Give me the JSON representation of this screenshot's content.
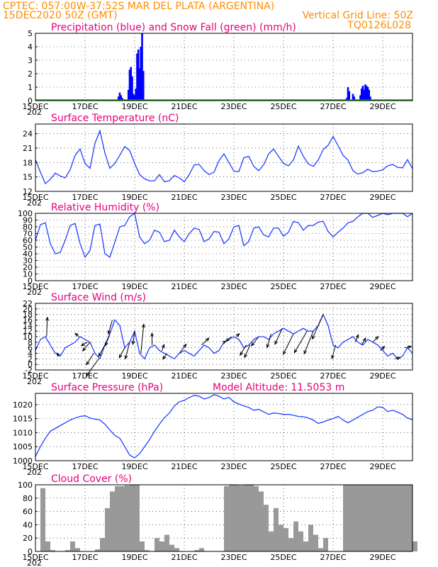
{
  "header": {
    "line1_left": "CPTEC:  057:00W-37:52S  MAR DEL PLATA (ARGENTINA)",
    "line2_left": "15DEC2020 50Z (GMT)",
    "line2_right": "Vertical Grid Line: 50Z",
    "line3_right": "TQ0126L028"
  },
  "colors": {
    "header": "#ff8c00",
    "title": "#e6007e",
    "line": "#2040ff",
    "precip": "#0000ff",
    "snow": "#00a000",
    "cloud": "#999999"
  },
  "x_axis": {
    "tick_labels": [
      "15DEC",
      "17DEC",
      "19DEC",
      "21DEC",
      "23DEC",
      "25DEC",
      "27DEC",
      "29DEC"
    ],
    "tick_days": [
      0,
      2,
      4,
      6,
      8,
      10,
      12,
      14
    ],
    "cut_label": "202",
    "range_days": [
      0,
      15.2
    ]
  },
  "chart_data": [
    {
      "type": "bar",
      "title": "Precipitation (blue) and Snow Fall (green) (mm/h)",
      "ylim": [
        0,
        5
      ],
      "yticks": [
        0,
        1,
        2,
        3,
        4,
        5
      ],
      "series": [
        {
          "name": "Precipitation",
          "color": "#0000ff",
          "x": [
            3.35,
            3.4,
            3.45,
            3.5,
            3.75,
            3.8,
            3.85,
            3.9,
            3.95,
            4.0,
            4.05,
            4.1,
            4.15,
            4.2,
            4.25,
            4.3,
            4.35,
            12.55,
            12.6,
            12.65,
            12.8,
            12.85,
            13.1,
            13.15,
            13.2,
            13.25,
            13.3,
            13.35,
            13.4,
            13.45,
            13.5
          ],
          "values": [
            0.3,
            0.6,
            0.4,
            0.2,
            0.8,
            2.3,
            2.5,
            1.8,
            0.5,
            0.4,
            0.9,
            3.5,
            3.8,
            2.4,
            4.0,
            5.0,
            2.2,
            0.2,
            1.0,
            0.7,
            0.5,
            0.3,
            0.4,
            0.9,
            1.1,
            0.8,
            1.2,
            1.1,
            1.0,
            0.8,
            0.3
          ]
        },
        {
          "name": "Snow Fall",
          "color": "#00a000",
          "x": [],
          "values": []
        }
      ]
    },
    {
      "type": "line",
      "title": "Surface Temperature (nC)",
      "ylim": [
        12,
        26
      ],
      "yticks": [
        12,
        15,
        18,
        21,
        24
      ],
      "x": [
        0,
        0.2,
        0.4,
        0.6,
        0.8,
        1,
        1.2,
        1.4,
        1.6,
        1.8,
        2,
        2.2,
        2.4,
        2.6,
        2.8,
        3,
        3.2,
        3.4,
        3.6,
        3.8,
        4,
        4.2,
        4.4,
        4.6,
        4.8,
        5,
        5.2,
        5.4,
        5.6,
        5.8,
        6,
        6.2,
        6.4,
        6.6,
        6.8,
        7,
        7.2,
        7.4,
        7.6,
        7.8,
        8,
        8.2,
        8.4,
        8.6,
        8.8,
        9,
        9.2,
        9.4,
        9.6,
        9.8,
        10,
        10.2,
        10.4,
        10.6,
        10.8,
        11,
        11.2,
        11.4,
        11.6,
        11.8,
        12,
        12.2,
        12.4,
        12.6,
        12.8,
        13,
        13.2,
        13.4,
        13.6,
        13.8,
        14,
        14.2,
        14.4,
        14.6,
        14.8,
        15,
        15.2
      ],
      "values": [
        18.6,
        16.0,
        13.6,
        14.5,
        15.8,
        15.2,
        14.8,
        16.5,
        19.5,
        20.8,
        17.8,
        16.8,
        22.0,
        24.6,
        20.0,
        16.8,
        17.8,
        19.5,
        21.3,
        20.5,
        17.8,
        15.5,
        14.6,
        14.2,
        14.2,
        15.5,
        14.0,
        14.2,
        15.3,
        14.8,
        14.0,
        15.5,
        17.5,
        17.6,
        16.3,
        15.5,
        16.0,
        18.4,
        19.8,
        18.0,
        16.2,
        16.1,
        19.0,
        19.3,
        17.2,
        16.3,
        17.5,
        19.8,
        20.8,
        19.3,
        17.8,
        17.3,
        18.5,
        21.4,
        19.3,
        17.7,
        17.2,
        18.5,
        20.7,
        21.6,
        23.4,
        21.5,
        19.5,
        18.5,
        16.3,
        15.6,
        15.9,
        16.6,
        16.1,
        16.2,
        16.5,
        17.3,
        17.6,
        17.0,
        16.9,
        18.6,
        16.7
      ]
    },
    {
      "type": "line",
      "title": "Relative Humidity (%)",
      "ylim": [
        0,
        100
      ],
      "yticks": [
        0,
        10,
        20,
        30,
        40,
        50,
        60,
        70,
        80,
        90,
        100
      ],
      "x": [
        0,
        0.2,
        0.4,
        0.6,
        0.8,
        1,
        1.2,
        1.4,
        1.6,
        1.8,
        2,
        2.2,
        2.4,
        2.6,
        2.8,
        3,
        3.2,
        3.4,
        3.6,
        3.8,
        4,
        4.2,
        4.4,
        4.6,
        4.8,
        5,
        5.2,
        5.4,
        5.6,
        5.8,
        6,
        6.2,
        6.4,
        6.6,
        6.8,
        7,
        7.2,
        7.4,
        7.6,
        7.8,
        8,
        8.2,
        8.4,
        8.6,
        8.8,
        9,
        9.2,
        9.4,
        9.6,
        9.8,
        10,
        10.2,
        10.4,
        10.6,
        10.8,
        11,
        11.2,
        11.4,
        11.6,
        11.8,
        12,
        12.2,
        12.4,
        12.6,
        12.8,
        13,
        13.2,
        13.4,
        13.6,
        13.8,
        14,
        14.2,
        14.4,
        14.6,
        14.8,
        15,
        15.2
      ],
      "values": [
        60,
        83,
        86,
        55,
        40,
        42,
        60,
        82,
        85,
        55,
        35,
        45,
        82,
        84,
        40,
        35,
        57,
        80,
        82,
        95,
        100,
        65,
        55,
        60,
        75,
        72,
        58,
        60,
        75,
        65,
        58,
        70,
        78,
        76,
        58,
        62,
        73,
        72,
        55,
        62,
        80,
        82,
        52,
        58,
        78,
        80,
        68,
        65,
        78,
        78,
        66,
        72,
        88,
        86,
        75,
        82,
        82,
        87,
        88,
        73,
        65,
        72,
        78,
        86,
        88,
        95,
        100,
        100,
        94,
        97,
        100,
        98,
        100,
        100,
        100,
        95,
        100
      ]
    },
    {
      "type": "line",
      "title": "Surface Wind (m/s)",
      "ylim": [
        -2,
        22
      ],
      "yticks": [
        -2,
        0,
        2,
        4,
        6,
        8,
        10,
        12,
        14,
        16,
        18,
        20,
        22
      ],
      "x": [
        0,
        0.2,
        0.4,
        0.6,
        0.8,
        1,
        1.2,
        1.4,
        1.6,
        1.8,
        2,
        2.2,
        2.4,
        2.6,
        2.8,
        3,
        3.2,
        3.4,
        3.6,
        3.8,
        4,
        4.2,
        4.4,
        4.6,
        4.8,
        5,
        5.2,
        5.4,
        5.6,
        5.8,
        6,
        6.2,
        6.4,
        6.6,
        6.8,
        7,
        7.2,
        7.4,
        7.6,
        7.8,
        8,
        8.2,
        8.4,
        8.6,
        8.8,
        9,
        9.2,
        9.4,
        9.6,
        9.8,
        10,
        10.2,
        10.4,
        10.6,
        10.8,
        11,
        11.2,
        11.4,
        11.6,
        11.8,
        12,
        12.2,
        12.4,
        12.6,
        12.8,
        13,
        13.2,
        13.4,
        13.6,
        13.8,
        14,
        14.2,
        14.4,
        14.6,
        14.8,
        15,
        15.2
      ],
      "values": [
        5,
        9,
        10,
        7,
        4,
        3,
        6,
        7,
        8,
        10,
        9,
        8,
        4,
        2,
        7,
        11,
        16,
        14,
        6,
        8,
        12,
        4,
        2,
        6,
        7,
        5,
        4,
        3,
        2,
        4,
        5,
        4,
        3,
        5,
        7,
        6,
        4,
        5,
        8,
        9,
        10,
        9,
        6,
        7,
        9,
        10,
        10,
        9,
        11,
        12,
        13,
        12,
        11,
        12,
        13,
        12,
        12,
        14,
        18,
        14,
        7,
        6,
        8,
        9,
        10,
        8,
        7,
        9,
        8,
        7,
        5,
        3,
        4,
        2,
        3,
        6,
        4
      ],
      "arrows": [
        {
          "x": 0.45,
          "u": 0.2,
          "v": 8.5
        },
        {
          "x": 0.95,
          "u": -0.5,
          "v": 1.3
        },
        {
          "x": 1.75,
          "u": -1.0,
          "v": 1.5
        },
        {
          "x": 2.1,
          "u": -1.7,
          "v": -1.5
        },
        {
          "x": 2.2,
          "u": -2.0,
          "v": -3.8
        },
        {
          "x": 2.35,
          "u": -2.0,
          "v": -5.0
        },
        {
          "x": 2.55,
          "u": -3.4,
          "v": -7.5
        },
        {
          "x": 2.8,
          "u": -1.7,
          "v": -5.0
        },
        {
          "x": 3.0,
          "u": -1.2,
          "v": -5.2
        },
        {
          "x": 3.1,
          "u": -1.1,
          "v": -6.1
        },
        {
          "x": 3.6,
          "u": -1.5,
          "v": -4.4
        },
        {
          "x": 3.8,
          "u": -1.2,
          "v": -7.3
        },
        {
          "x": 4.0,
          "u": -0.5,
          "v": -5.8
        },
        {
          "x": 4.25,
          "u": 0.8,
          "v": 12.8
        },
        {
          "x": 4.7,
          "u": 0,
          "v": 5.2
        },
        {
          "x": 5.1,
          "u": 0.6,
          "v": 2.6
        },
        {
          "x": 5.3,
          "u": -1.1,
          "v": -2.6
        },
        {
          "x": 5.8,
          "u": 1.9,
          "v": 4.0
        },
        {
          "x": 6.7,
          "u": 2.0,
          "v": 3.0
        },
        {
          "x": 7.6,
          "u": 0.5,
          "v": 0.4
        },
        {
          "x": 7.9,
          "u": -1.5,
          "v": -2.0
        },
        {
          "x": 8.1,
          "u": 0.8,
          "v": 1.3
        },
        {
          "x": 8.5,
          "u": -1.7,
          "v": -4.5
        },
        {
          "x": 8.65,
          "u": -1.5,
          "v": -5.5
        },
        {
          "x": 9.0,
          "u": -2.0,
          "v": -4.0
        },
        {
          "x": 9.5,
          "u": -1.1,
          "v": -6.0
        },
        {
          "x": 9.95,
          "u": -2.0,
          "v": -7.0
        },
        {
          "x": 10.4,
          "u": -2.8,
          "v": -9.0
        },
        {
          "x": 10.95,
          "u": -3.5,
          "v": -9.5
        },
        {
          "x": 11.2,
          "u": -2.5,
          "v": -10.0
        },
        {
          "x": 11.6,
          "u": -3.0,
          "v": -10.8
        },
        {
          "x": 12.1,
          "u": -1.0,
          "v": -6.0
        },
        {
          "x": 12.9,
          "u": 0.8,
          "v": 3.3
        },
        {
          "x": 13.15,
          "u": 1.1,
          "v": 3.0
        },
        {
          "x": 13.6,
          "u": 1.5,
          "v": 2.5
        },
        {
          "x": 13.9,
          "u": 1.2,
          "v": 1.8
        },
        {
          "x": 14.5,
          "u": 1.4,
          "v": 0.6
        },
        {
          "x": 14.9,
          "u": 1.7,
          "v": 0.6
        }
      ]
    },
    {
      "type": "line",
      "title": "Surface Pressure (hPa)",
      "annotation": "Model Altitude: 11.5053 m",
      "ylim": [
        1000,
        1024
      ],
      "yticks": [
        1000,
        1005,
        1010,
        1015,
        1020
      ],
      "x": [
        0,
        0.2,
        0.4,
        0.6,
        0.8,
        1,
        1.2,
        1.4,
        1.6,
        1.8,
        2,
        2.2,
        2.4,
        2.6,
        2.8,
        3,
        3.2,
        3.4,
        3.6,
        3.8,
        4,
        4.2,
        4.4,
        4.6,
        4.8,
        5,
        5.2,
        5.4,
        5.6,
        5.8,
        6,
        6.2,
        6.4,
        6.6,
        6.8,
        7,
        7.2,
        7.4,
        7.6,
        7.8,
        8,
        8.2,
        8.4,
        8.6,
        8.8,
        9,
        9.2,
        9.4,
        9.6,
        9.8,
        10,
        10.2,
        10.4,
        10.6,
        10.8,
        11,
        11.2,
        11.4,
        11.6,
        11.8,
        12,
        12.2,
        12.4,
        12.6,
        12.8,
        13,
        13.2,
        13.4,
        13.6,
        13.8,
        14,
        14.2,
        14.4,
        14.6,
        14.8,
        15,
        15.2
      ],
      "values": [
        1001.5,
        1005,
        1008,
        1010.5,
        1011.5,
        1012.5,
        1013.5,
        1014.5,
        1015.2,
        1015.8,
        1016,
        1015.2,
        1014.8,
        1014.5,
        1013,
        1011,
        1009,
        1008,
        1005,
        1002,
        1001,
        1002.5,
        1005,
        1007.5,
        1010.5,
        1013,
        1015.3,
        1017,
        1019.5,
        1021,
        1021.5,
        1022.5,
        1023.3,
        1023,
        1022,
        1022.5,
        1023.5,
        1023,
        1022,
        1022.5,
        1021,
        1020.2,
        1019.5,
        1019,
        1018,
        1018.3,
        1017.4,
        1016.5,
        1017,
        1016.8,
        1016.5,
        1016.5,
        1016.2,
        1015.8,
        1015.7,
        1015.2,
        1014.5,
        1013.3,
        1013.8,
        1014.5,
        1015,
        1015.8,
        1014.5,
        1013.5,
        1014.5,
        1015.5,
        1016.5,
        1017.5,
        1018,
        1019.2,
        1019,
        1017.5,
        1018,
        1017.3,
        1016.5,
        1015.2,
        1014.6
      ]
    },
    {
      "type": "area",
      "title": "Cloud Cover (%)",
      "ylim": [
        0,
        100
      ],
      "yticks": [
        0,
        20,
        40,
        60,
        80,
        100
      ],
      "x": [
        0,
        0.2,
        0.4,
        0.6,
        0.8,
        1,
        1.2,
        1.4,
        1.6,
        1.8,
        2,
        2.2,
        2.4,
        2.6,
        2.8,
        3,
        3.2,
        3.4,
        3.6,
        3.8,
        4,
        4.2,
        4.4,
        4.6,
        4.8,
        5,
        5.2,
        5.4,
        5.6,
        5.8,
        6,
        6.2,
        6.4,
        6.6,
        6.8,
        7,
        7.2,
        7.4,
        7.6,
        7.8,
        8,
        8.2,
        8.4,
        8.6,
        8.8,
        9,
        9.2,
        9.4,
        9.6,
        9.8,
        10,
        10.2,
        10.4,
        10.6,
        10.8,
        11,
        11.2,
        11.4,
        11.6,
        11.8,
        12,
        12.2,
        12.4,
        12.6,
        12.8,
        13,
        13.2,
        13.4,
        13.6,
        13.8,
        14,
        14.2,
        14.4,
        14.6,
        14.8,
        15,
        15.2
      ],
      "values": [
        0,
        95,
        15,
        2,
        0,
        0,
        2,
        15,
        5,
        0,
        0,
        0,
        3,
        20,
        65,
        90,
        98,
        98,
        99,
        100,
        100,
        15,
        2,
        0,
        20,
        15,
        25,
        10,
        5,
        0,
        0,
        0,
        2,
        5,
        0,
        0,
        0,
        0,
        98,
        100,
        100,
        99,
        100,
        100,
        98,
        90,
        70,
        30,
        65,
        40,
        35,
        20,
        45,
        30,
        15,
        40,
        25,
        5,
        20,
        0,
        0,
        0,
        100,
        100,
        100,
        100,
        100,
        100,
        100,
        100,
        100,
        100,
        100,
        100,
        100,
        100,
        15
      ]
    }
  ],
  "panels": [
    {
      "title": "Precipitation (blue) and Snow Fall (green) (mm/h)"
    },
    {
      "title": "Surface Temperature (nC)"
    },
    {
      "title": "Relative Humidity (%)"
    },
    {
      "title": "Surface Wind (m/s)"
    },
    {
      "title": "Surface Pressure (hPa)",
      "annotation": "Model Altitude: 11.5053 m"
    },
    {
      "title": "Cloud Cover (%)"
    }
  ]
}
